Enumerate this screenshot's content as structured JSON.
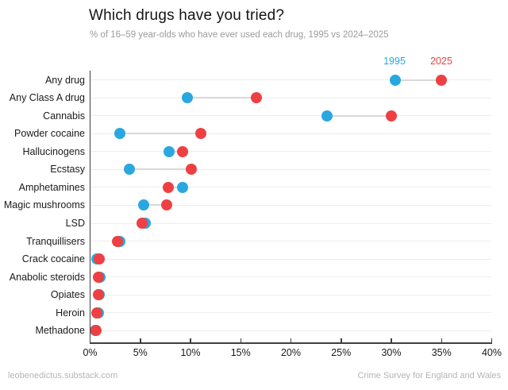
{
  "header": {
    "title": "Which drugs have you tried?",
    "subtitle": "% of 16–59 year-olds who have ever used each drug, 1995 vs 2024–2025"
  },
  "legend": {
    "label_1995": "1995",
    "label_2025": "2025",
    "color_1995": "#29a8e0",
    "color_2025": "#ee4043"
  },
  "footer": {
    "left": "leobenedictus.substack.com",
    "right": "Crime Survey for England and Wales"
  },
  "chart_data": {
    "type": "scatter",
    "subtype": "dumbbell",
    "title": "Which drugs have you tried?",
    "subtitle": "% of 16–59 year-olds who have ever used each drug, 1995 vs 2024–2025",
    "source": "Crime Survey for England and Wales",
    "categories": [
      "Any drug",
      "Any Class A drug",
      "Cannabis",
      "Powder cocaine",
      "Hallucinogens",
      "Ecstasy",
      "Amphetamines",
      "Magic mushrooms",
      "LSD",
      "Tranquillisers",
      "Crack cocaine",
      "Anabolic steroids",
      "Opiates",
      "Heroin",
      "Methadone"
    ],
    "series": [
      {
        "name": "1995",
        "color": "#29a8e0",
        "values": [
          30.4,
          9.7,
          23.6,
          3.0,
          7.9,
          3.9,
          9.2,
          5.3,
          5.5,
          3.0,
          0.7,
          1.0,
          0.9,
          0.8,
          0.5
        ]
      },
      {
        "name": "2025",
        "color": "#ee4043",
        "values": [
          35.0,
          16.6,
          30.0,
          11.0,
          9.2,
          10.1,
          7.8,
          7.6,
          5.2,
          2.7,
          0.9,
          0.8,
          0.8,
          0.7,
          0.6
        ]
      }
    ],
    "xlabel": "",
    "ylabel": "",
    "xlim": [
      0,
      40
    ],
    "x_tick_values": [
      0,
      5,
      10,
      15,
      20,
      25,
      30,
      35,
      40
    ],
    "x_tick_labels": [
      "0%",
      "5%",
      "10%",
      "15%",
      "20%",
      "25%",
      "30%",
      "35%",
      "40%"
    ],
    "grid": "faint horizontal line per category row",
    "legend_position": "above first row, over the 1995 and 2025 dots",
    "colors": {
      "row_gridline": "#ededed",
      "connector": "#d8d8d8",
      "axis": "#3f3f3f"
    }
  }
}
